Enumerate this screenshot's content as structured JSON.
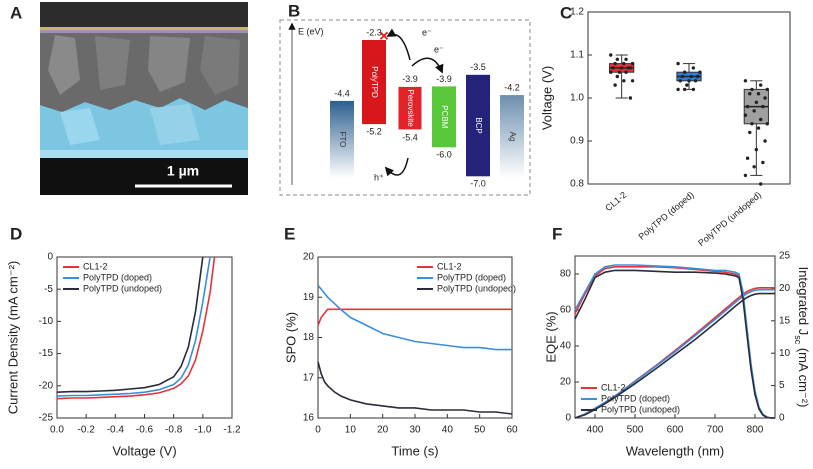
{
  "panel_a": {
    "label": "A",
    "scale_bar": "1 µm"
  },
  "panel_b": {
    "label": "B",
    "axis_label": "E (eV)",
    "materials": [
      {
        "name": "FTO",
        "color": "url(#gFTO)",
        "levels": [
          -4.4
        ]
      },
      {
        "name": "PolyTPD",
        "color": "#d9161c",
        "levels": [
          -2.3,
          -5.2
        ]
      },
      {
        "name": "Perovskite",
        "color": "#e0242a",
        "levels": [
          -3.9,
          -5.4
        ]
      },
      {
        "name": "PCBM",
        "color": "#58c83a",
        "levels": [
          -3.9,
          {
            "value": -6,
            "label": "-6.0"
          }
        ]
      },
      {
        "name": "BCP",
        "color": "#23237a",
        "levels": [
          -3.5,
          {
            "value": -7,
            "label": "-7.0"
          }
        ]
      },
      {
        "name": "Ag",
        "color": "url(#gAg)",
        "levels": [
          -4.2
        ]
      }
    ],
    "charges": [
      "e⁻",
      "e⁻",
      "h⁺"
    ]
  },
  "chart_data": [
    {
      "type": "box",
      "label": "C",
      "ylabel": "Voltage (V)",
      "categories": [
        "CL1-2",
        "PolyTPD (doped)",
        "PolyTPD (undoped)"
      ],
      "ylim": [
        0.8,
        1.2
      ],
      "yticks": [
        0.8,
        0.9,
        {
          "value": 1,
          "label": "1.0"
        },
        1.1,
        1.2
      ],
      "boxes": [
        {
          "color": "#e8323a",
          "min": 1.0,
          "q1": 1.06,
          "median": 1.07,
          "q3": 1.08,
          "max": 1.1,
          "points": [
            1.1,
            1.09,
            1.09,
            1.08,
            1.08,
            1.08,
            1.07,
            1.07,
            1.07,
            1.07,
            1.06,
            1.06,
            1.06,
            1.05,
            1.04,
            1.04,
            1.03,
            1.0
          ]
        },
        {
          "color": "#2d7fd8",
          "min": 1.02,
          "q1": 1.04,
          "median": 1.05,
          "q3": 1.06,
          "max": 1.08,
          "points": [
            1.08,
            1.07,
            1.06,
            1.06,
            1.05,
            1.05,
            1.05,
            1.04,
            1.04,
            1.04,
            1.03,
            1.02,
            1.02,
            1.02
          ]
        },
        {
          "color": "#a0a0a0",
          "min": 0.82,
          "q1": 0.94,
          "median": 0.98,
          "q3": 1.02,
          "max": 1.04,
          "points": [
            1.04,
            1.03,
            1.02,
            1.02,
            1.01,
            1.01,
            1.0,
            0.99,
            0.98,
            0.98,
            0.97,
            0.96,
            0.95,
            0.94,
            0.94,
            0.93,
            0.92,
            0.9,
            0.88,
            0.86,
            0.85,
            0.84,
            0.82,
            0.8
          ]
        }
      ]
    },
    {
      "type": "line",
      "label": "D",
      "xlabel": "Voltage (V)",
      "ylabel": "Current Density (mA cm⁻²)",
      "legend": "upper left",
      "x": [
        0,
        -0.1,
        -0.2,
        -0.3,
        -0.4,
        -0.5,
        -0.6,
        -0.7,
        -0.8,
        -0.85,
        -0.9,
        -0.95,
        -1.0,
        -1.05,
        -1.08
      ],
      "xlim": [
        0,
        -1.2
      ],
      "xticks": [
        {
          "value": 0,
          "label": "0.0"
        },
        -0.2,
        -0.4,
        -0.6,
        -0.8,
        {
          "value": -1,
          "label": "-1.0"
        },
        -1.2
      ],
      "ylim": [
        -25,
        0
      ],
      "yticks": [
        -25,
        -20,
        -15,
        -10,
        -5,
        0
      ],
      "series": [
        {
          "name": "CL1-2",
          "color": "#e8323a",
          "values": [
            -22.0,
            -21.9,
            -21.9,
            -21.8,
            -21.7,
            -21.6,
            -21.4,
            -21.1,
            -20.4,
            -19.7,
            -18.5,
            -16.0,
            -11.5,
            -5.5,
            0
          ]
        },
        {
          "name": "PolyTPD (doped)",
          "color": "#3a8fdc",
          "values": [
            -21.6,
            -21.5,
            -21.5,
            -21.4,
            -21.3,
            -21.2,
            -21.0,
            -20.6,
            -19.8,
            -18.8,
            -16.8,
            -13.0,
            -7.0,
            0,
            null
          ]
        },
        {
          "name": "PolyTPD (undoped)",
          "color": "#2b2b3a",
          "values": [
            -21.0,
            -20.9,
            -20.9,
            -20.8,
            -20.7,
            -20.5,
            -20.3,
            -19.8,
            -18.6,
            -17.0,
            -14.0,
            -8.5,
            0,
            null,
            null
          ]
        }
      ]
    },
    {
      "type": "line",
      "label": "E",
      "xlabel": "Time (s)",
      "ylabel": "SPO (%)",
      "legend": "upper right",
      "x": [
        0,
        1,
        2,
        3,
        5,
        7,
        10,
        15,
        20,
        25,
        30,
        35,
        40,
        45,
        50,
        55,
        60
      ],
      "xlim": [
        0,
        60
      ],
      "xticks": [
        0,
        10,
        20,
        30,
        40,
        50,
        60
      ],
      "ylim": [
        16,
        20
      ],
      "yticks": [
        16,
        17,
        18,
        19,
        20
      ],
      "series": [
        {
          "name": "CL1-2",
          "color": "#e8323a",
          "values": [
            18.3,
            18.5,
            18.6,
            18.7,
            18.7,
            18.7,
            18.7,
            18.7,
            18.7,
            18.7,
            18.7,
            18.7,
            18.7,
            18.7,
            18.7,
            18.7,
            18.7
          ]
        },
        {
          "name": "PolyTPD (doped)",
          "color": "#3a8fdc",
          "values": [
            19.3,
            19.2,
            19.1,
            19.0,
            18.85,
            18.7,
            18.5,
            18.3,
            18.1,
            18.0,
            17.9,
            17.85,
            17.8,
            17.75,
            17.75,
            17.7,
            17.7
          ]
        },
        {
          "name": "PolyTPD (undoped)",
          "color": "#2b2b3a",
          "values": [
            17.4,
            17.1,
            16.9,
            16.8,
            16.65,
            16.55,
            16.45,
            16.35,
            16.3,
            16.25,
            16.25,
            16.2,
            16.2,
            16.2,
            16.15,
            16.15,
            16.1
          ]
        }
      ]
    },
    {
      "type": "dual",
      "label": "F",
      "xlabel": "Wavelength (nm)",
      "ylabel": "EQE (%)",
      "y2label": [
        "Integrated J",
        "sc",
        " (mA cm⁻²)"
      ],
      "legend": "lower left",
      "x": [
        350,
        375,
        400,
        425,
        450,
        500,
        550,
        600,
        650,
        700,
        725,
        750,
        760,
        770,
        780,
        790,
        800,
        810,
        820,
        830,
        840,
        850
      ],
      "xlim": [
        350,
        850
      ],
      "xticks": [
        400,
        500,
        600,
        700,
        800
      ],
      "ylim": [
        0,
        90
      ],
      "yticks": [
        0,
        20,
        40,
        60,
        80
      ],
      "y2lim": [
        0,
        25
      ],
      "y2ticks": [
        0,
        5,
        10,
        15,
        20,
        25
      ],
      "series": [
        {
          "name": "CL1-2",
          "color": "#e8323a",
          "values": [
            58,
            69,
            79,
            83,
            84,
            84,
            84,
            83.5,
            82.5,
            81.5,
            81,
            80,
            79,
            68,
            48,
            28,
            14,
            5,
            2,
            0.5,
            0,
            0
          ],
          "y2_values": [
            0,
            0.6,
            1.5,
            2.4,
            3.4,
            5.7,
            8.0,
            10.4,
            12.9,
            15.5,
            16.8,
            18.1,
            18.6,
            19.1,
            19.5,
            19.8,
            20.0,
            20.1,
            20.1,
            20.1,
            20.1,
            20.1
          ]
        },
        {
          "name": "PolyTPD (doped)",
          "color": "#3a8fdc",
          "values": [
            60,
            70,
            80,
            84,
            85,
            85,
            84.5,
            84,
            83,
            82,
            82,
            81,
            80,
            70,
            50,
            30,
            15,
            6,
            2,
            0.5,
            0,
            0
          ],
          "y2_values": [
            0,
            0.6,
            1.5,
            2.4,
            3.4,
            5.6,
            7.9,
            10.2,
            12.7,
            15.2,
            16.5,
            17.8,
            18.3,
            18.8,
            19.2,
            19.5,
            19.7,
            19.8,
            19.8,
            19.8,
            19.8,
            19.8
          ]
        },
        {
          "name": "PolyTPD (undoped)",
          "color": "#2b2b3a",
          "values": [
            55,
            66,
            78,
            81,
            82,
            82,
            81.5,
            81,
            81,
            80.5,
            80,
            79,
            78,
            66,
            46,
            27,
            13,
            5,
            1.5,
            0.3,
            0,
            0
          ],
          "y2_values": [
            0,
            0.5,
            1.3,
            2.2,
            3.2,
            5.3,
            7.5,
            9.8,
            12.1,
            14.6,
            15.9,
            17.2,
            17.7,
            18.2,
            18.6,
            18.9,
            19.1,
            19.2,
            19.2,
            19.2,
            19.2,
            19.2
          ]
        }
      ]
    }
  ]
}
